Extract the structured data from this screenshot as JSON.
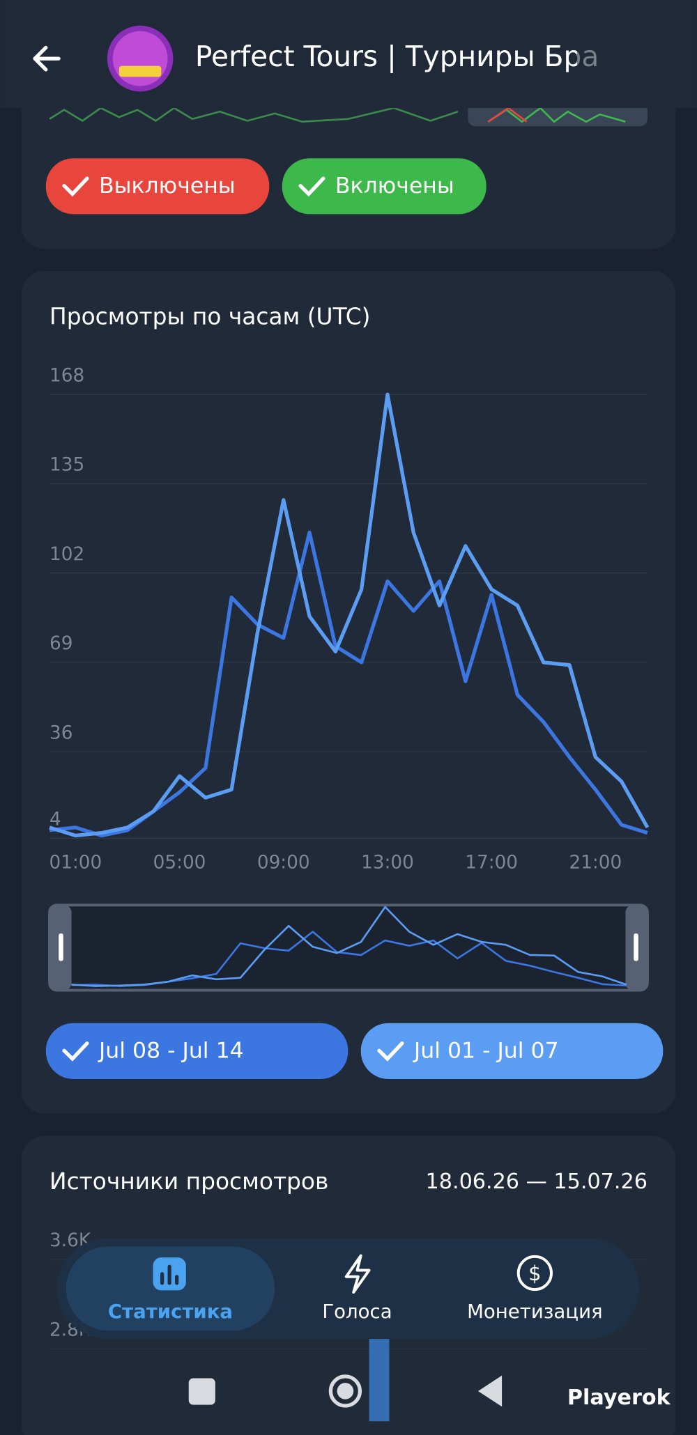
{
  "header": {
    "title": "Perfect Tours | Турниры Бра"
  },
  "filters": [
    "Выключены",
    "Включены"
  ],
  "chart_data": {
    "type": "line",
    "title": "Просмотры по часам (UTC)",
    "categories": [
      null,
      "01:00",
      null,
      null,
      null,
      "05:00",
      null,
      null,
      null,
      "09:00",
      null,
      null,
      null,
      "13:00",
      null,
      null,
      null,
      "17:00",
      null,
      null,
      null,
      "21:00",
      null,
      null
    ],
    "series": [
      {
        "name": "Jul 08 - Jul 14",
        "color": "#3b76e1",
        "values": [
          7,
          8,
          5,
          7,
          14,
          21,
          30,
          93,
          83,
          78,
          117,
          75,
          69,
          99,
          88,
          99,
          62,
          94,
          57,
          47,
          34,
          22,
          9,
          6
        ]
      },
      {
        "name": "Jul 01 - Jul 07",
        "color": "#5b9df3",
        "values": [
          8,
          5,
          6,
          8,
          14,
          27,
          19,
          22,
          80,
          129,
          86,
          73,
          96,
          168,
          117,
          90,
          112,
          96,
          90,
          69,
          68,
          34,
          25,
          8
        ]
      }
    ],
    "ylim": [
      4,
      168
    ],
    "yticks": [
      4,
      36,
      69,
      102,
      135,
      168
    ],
    "grid": true
  },
  "sources": {
    "title": "Источники просмотров",
    "date_range": "18.06.26 — 15.07.26",
    "yticks": [
      "3.6K",
      "2.8K"
    ]
  },
  "nav": {
    "tabs": [
      "Статистика",
      "Голоса",
      "Монетизация"
    ]
  },
  "watermark": "Playerok"
}
